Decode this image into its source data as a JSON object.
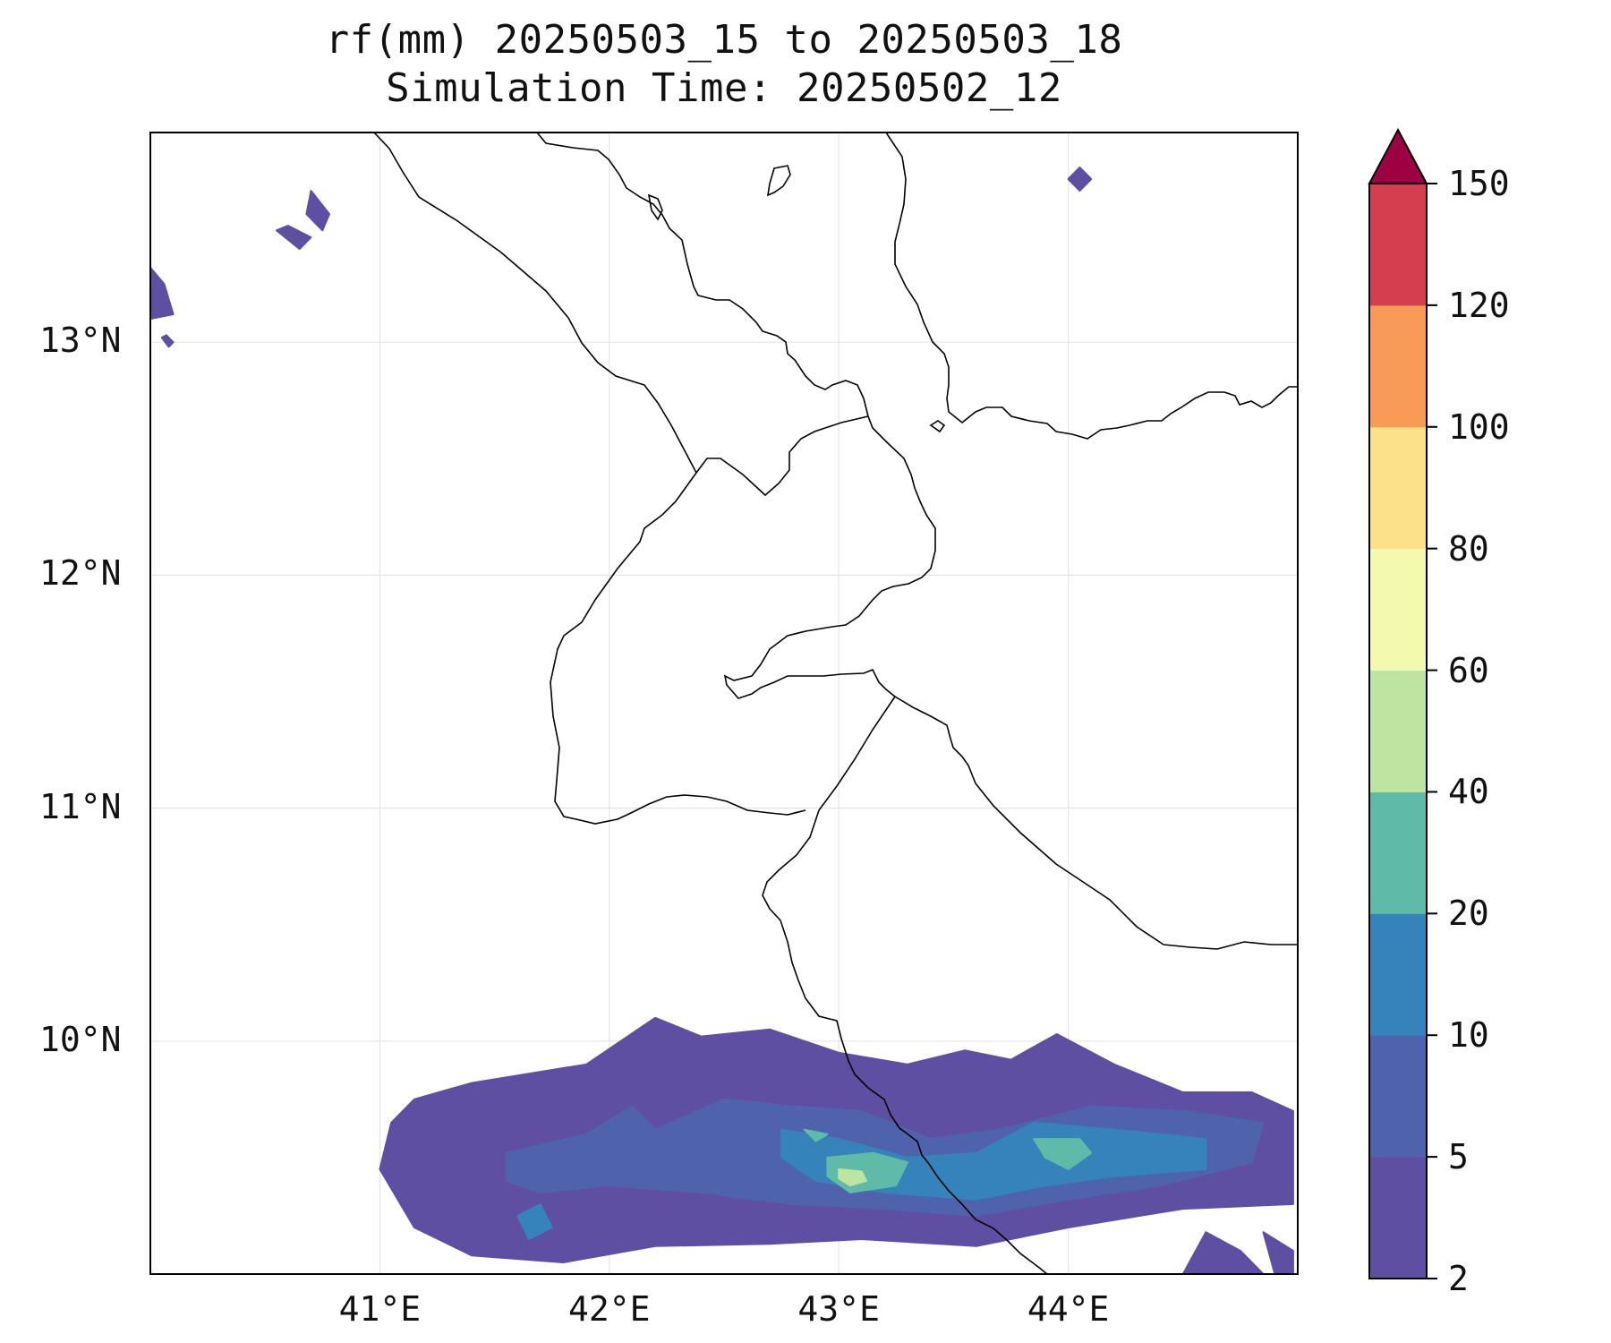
{
  "title": {
    "line1": "rf(mm) 20250503_15 to 20250503_18",
    "line2": "Simulation Time: 20250502_12"
  },
  "map": {
    "variable": "rf(mm)",
    "lon_range": [
      40.0,
      45.0
    ],
    "lat_range": [
      9.0,
      13.9
    ],
    "lat_ticks": [
      {
        "value": 13,
        "label": "13°N"
      },
      {
        "value": 12,
        "label": "12°N"
      },
      {
        "value": 11,
        "label": "11°N"
      },
      {
        "value": 10,
        "label": "10°N"
      }
    ],
    "lon_ticks": [
      {
        "value": 41,
        "label": "41°E"
      },
      {
        "value": 42,
        "label": "42°E"
      },
      {
        "value": 43,
        "label": "43°E"
      },
      {
        "value": 44,
        "label": "44°E"
      }
    ],
    "grid": true,
    "background_color": "#ffffff",
    "coastline_color": "#000000"
  },
  "colorbar": {
    "orientation": "vertical",
    "extend": "max",
    "levels": [
      2,
      5,
      10,
      20,
      40,
      60,
      80,
      100,
      120,
      150
    ],
    "tick_labels": [
      "2",
      "5",
      "10",
      "20",
      "40",
      "60",
      "80",
      "100",
      "120",
      "150"
    ],
    "colors": [
      "#5e4fa2",
      "#4f63ad",
      "#3682ba",
      "#5fbaa8",
      "#bde4a0",
      "#f3fab0",
      "#fce08a",
      "#f89b57",
      "#d53e4f"
    ],
    "extend_color": "#9e0142"
  },
  "rain_fields": [
    {
      "level": 2,
      "color": "#5e4fa2",
      "areas": [
        {
          "polygon": [
            [
              41.15,
              9.75
            ],
            [
              41.4,
              9.82
            ],
            [
              41.9,
              9.9
            ],
            [
              42.05,
              10.0
            ],
            [
              42.2,
              10.1
            ],
            [
              42.4,
              10.02
            ],
            [
              42.7,
              10.05
            ],
            [
              43.0,
              9.95
            ],
            [
              43.3,
              9.9
            ],
            [
              43.55,
              9.96
            ],
            [
              43.75,
              9.92
            ],
            [
              43.95,
              10.03
            ],
            [
              44.2,
              9.9
            ],
            [
              44.5,
              9.78
            ],
            [
              44.8,
              9.78
            ],
            [
              44.98,
              9.7
            ],
            [
              44.98,
              9.3
            ],
            [
              44.5,
              9.28
            ],
            [
              44.0,
              9.2
            ],
            [
              43.6,
              9.12
            ],
            [
              43.1,
              9.15
            ],
            [
              42.7,
              9.13
            ],
            [
              42.2,
              9.12
            ],
            [
              41.8,
              9.05
            ],
            [
              41.4,
              9.08
            ],
            [
              41.15,
              9.2
            ],
            [
              41.0,
              9.45
            ],
            [
              41.05,
              9.65
            ]
          ]
        },
        {
          "polygon": [
            [
              40.0,
              13.32
            ],
            [
              40.06,
              13.25
            ],
            [
              40.1,
              13.12
            ],
            [
              40.0,
              13.1
            ]
          ]
        },
        {
          "polygon": [
            [
              40.55,
              13.48
            ],
            [
              40.65,
              13.4
            ],
            [
              40.7,
              13.45
            ],
            [
              40.6,
              13.5
            ]
          ]
        },
        {
          "polygon": [
            [
              40.7,
              13.65
            ],
            [
              40.78,
              13.55
            ],
            [
              40.75,
              13.48
            ],
            [
              40.68,
              13.55
            ]
          ]
        },
        {
          "polygon": [
            [
              44.0,
              13.7
            ],
            [
              44.05,
              13.75
            ],
            [
              44.1,
              13.7
            ],
            [
              44.05,
              13.65
            ]
          ]
        },
        {
          "polygon": [
            [
              40.05,
              13.02
            ],
            [
              40.08,
              12.98
            ],
            [
              40.1,
              13.0
            ],
            [
              40.07,
              13.03
            ]
          ]
        },
        {
          "polygon": [
            [
              44.6,
              9.18
            ],
            [
              44.75,
              9.1
            ],
            [
              44.85,
              9.0
            ],
            [
              44.5,
              9.0
            ]
          ]
        },
        {
          "polygon": [
            [
              44.85,
              9.18
            ],
            [
              44.98,
              9.1
            ],
            [
              44.98,
              9.0
            ],
            [
              44.9,
              9.0
            ]
          ]
        }
      ]
    },
    {
      "level": 5,
      "color": "#4f63ad",
      "areas": [
        {
          "polygon": [
            [
              41.55,
              9.52
            ],
            [
              41.9,
              9.6
            ],
            [
              42.1,
              9.72
            ],
            [
              42.2,
              9.62
            ],
            [
              42.5,
              9.75
            ],
            [
              42.8,
              9.72
            ],
            [
              43.1,
              9.7
            ],
            [
              43.4,
              9.58
            ],
            [
              43.7,
              9.62
            ],
            [
              44.1,
              9.72
            ],
            [
              44.5,
              9.7
            ],
            [
              44.85,
              9.65
            ],
            [
              44.8,
              9.48
            ],
            [
              44.4,
              9.38
            ],
            [
              44.0,
              9.32
            ],
            [
              43.6,
              9.25
            ],
            [
              43.2,
              9.28
            ],
            [
              42.8,
              9.3
            ],
            [
              42.4,
              9.35
            ],
            [
              42.0,
              9.38
            ],
            [
              41.7,
              9.35
            ],
            [
              41.55,
              9.4
            ]
          ]
        }
      ]
    },
    {
      "level": 10,
      "color": "#3682ba",
      "areas": [
        {
          "polygon": [
            [
              42.75,
              9.62
            ],
            [
              43.0,
              9.58
            ],
            [
              43.3,
              9.5
            ],
            [
              43.6,
              9.52
            ],
            [
              43.85,
              9.65
            ],
            [
              44.2,
              9.62
            ],
            [
              44.6,
              9.58
            ],
            [
              44.6,
              9.45
            ],
            [
              44.2,
              9.42
            ],
            [
              43.9,
              9.38
            ],
            [
              43.6,
              9.32
            ],
            [
              43.2,
              9.35
            ],
            [
              42.9,
              9.4
            ],
            [
              42.75,
              9.5
            ]
          ]
        },
        {
          "polygon": [
            [
              41.6,
              9.25
            ],
            [
              41.7,
              9.3
            ],
            [
              41.75,
              9.2
            ],
            [
              41.65,
              9.15
            ]
          ]
        }
      ]
    },
    {
      "level": 20,
      "color": "#5fbaa8",
      "areas": [
        {
          "polygon": [
            [
              42.95,
              9.5
            ],
            [
              43.15,
              9.52
            ],
            [
              43.3,
              9.48
            ],
            [
              43.25,
              9.38
            ],
            [
              43.05,
              9.35
            ],
            [
              42.95,
              9.42
            ]
          ]
        },
        {
          "polygon": [
            [
              43.85,
              9.58
            ],
            [
              44.05,
              9.58
            ],
            [
              44.1,
              9.52
            ],
            [
              44.0,
              9.45
            ],
            [
              43.9,
              9.5
            ]
          ]
        },
        {
          "polygon": [
            [
              42.85,
              9.62
            ],
            [
              42.95,
              9.6
            ],
            [
              42.9,
              9.57
            ]
          ]
        }
      ]
    },
    {
      "level": 40,
      "color": "#bde4a0",
      "areas": [
        {
          "polygon": [
            [
              43.0,
              9.45
            ],
            [
              43.1,
              9.44
            ],
            [
              43.12,
              9.4
            ],
            [
              43.05,
              9.38
            ],
            [
              43.0,
              9.41
            ]
          ]
        }
      ]
    }
  ]
}
